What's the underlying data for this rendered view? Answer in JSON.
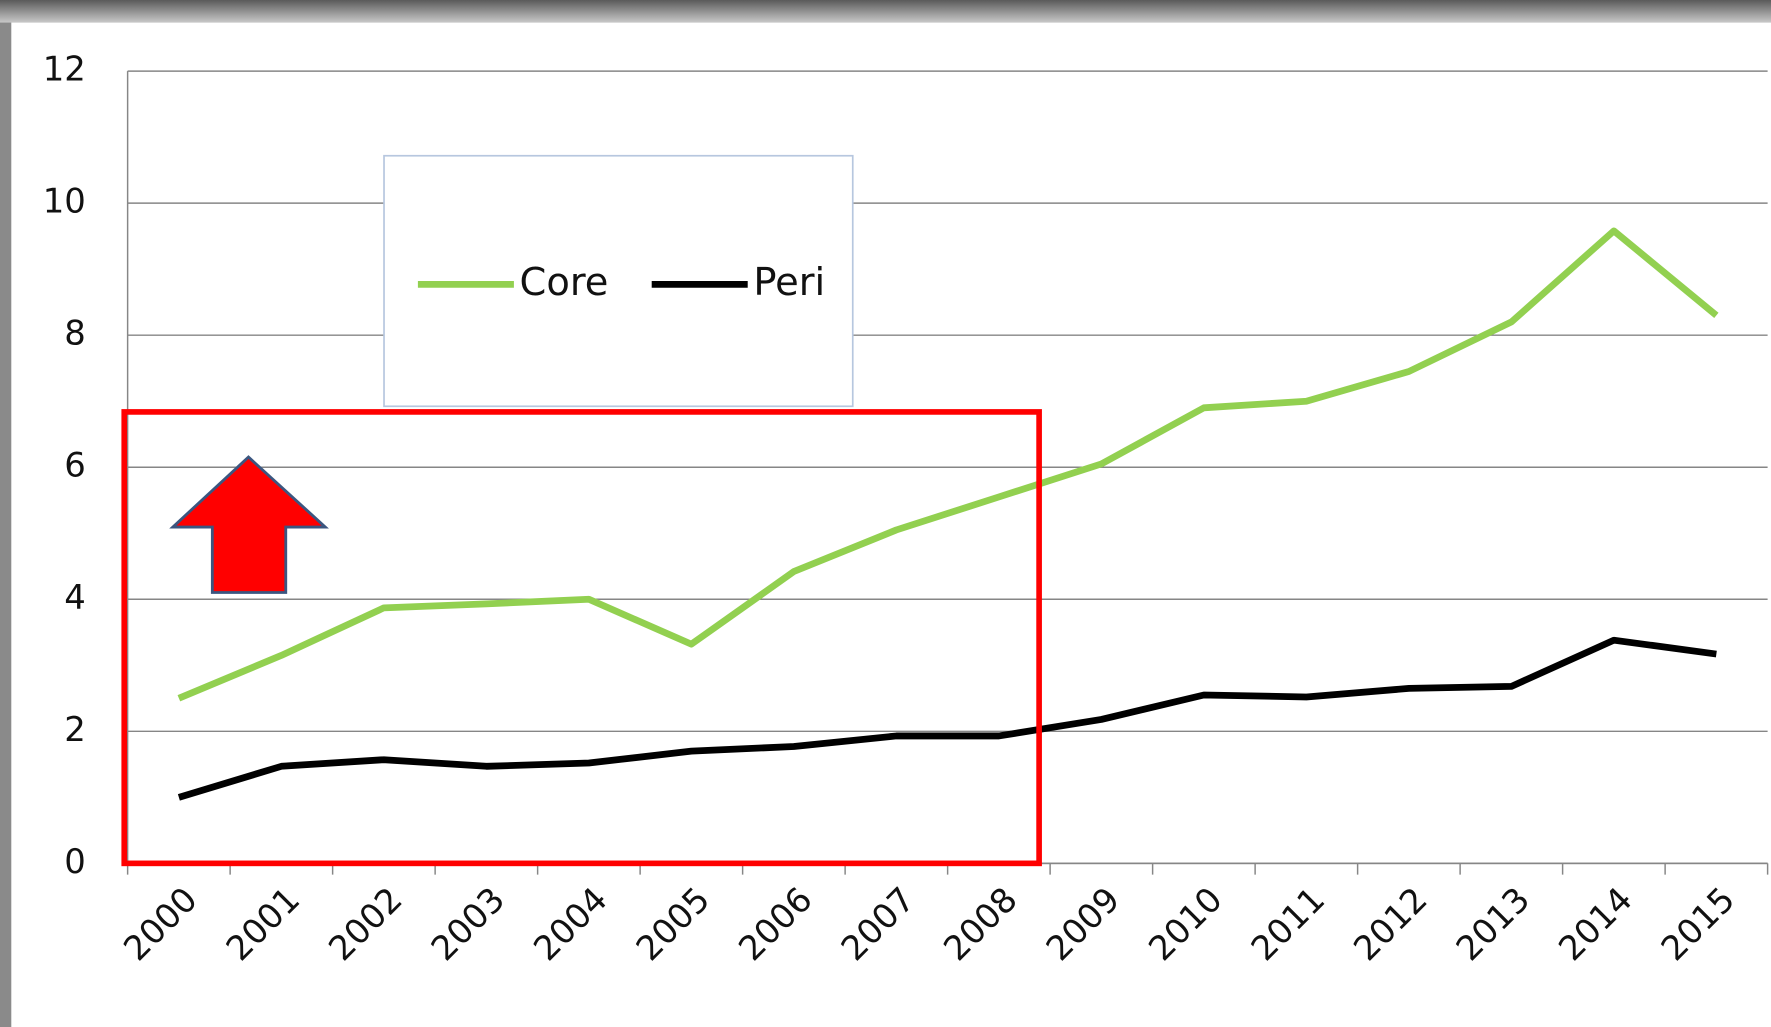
{
  "chart_data": {
    "type": "line",
    "categories": [
      "2000",
      "2001",
      "2002",
      "2003",
      "2004",
      "2005",
      "2006",
      "2007",
      "2008",
      "2009",
      "2010",
      "2011",
      "2012",
      "2013",
      "2014",
      "2015"
    ],
    "series": [
      {
        "name": "Core",
        "color": "#92d050",
        "values": [
          2.5,
          3.15,
          3.87,
          3.93,
          4.0,
          3.32,
          4.42,
          5.05,
          5.55,
          6.05,
          6.9,
          7.0,
          7.45,
          8.2,
          9.58,
          8.3
        ]
      },
      {
        "name": "Peri",
        "color": "#000000",
        "values": [
          1.0,
          1.47,
          1.57,
          1.47,
          1.52,
          1.7,
          1.77,
          1.93,
          1.93,
          2.18,
          2.55,
          2.52,
          2.65,
          2.68,
          3.38,
          3.17
        ]
      }
    ],
    "ylim": [
      0,
      12
    ],
    "yticks": [
      0,
      2,
      4,
      6,
      8,
      10,
      12
    ],
    "grid": true
  }
}
